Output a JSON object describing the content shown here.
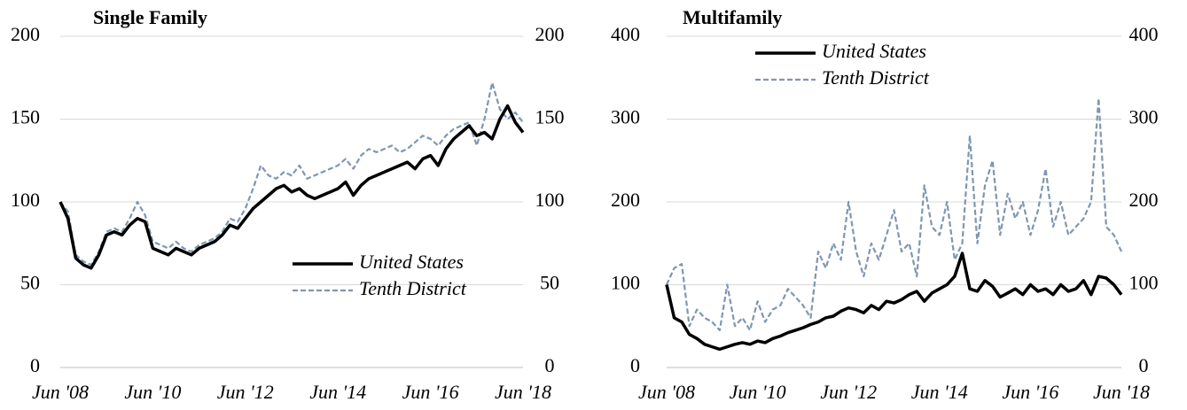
{
  "chart_data": [
    {
      "type": "line",
      "title": "Single Family",
      "categories": [
        "Jun '08",
        null,
        null,
        null,
        null,
        null,
        null,
        null,
        null,
        null,
        null,
        null,
        "Jun '10",
        null,
        null,
        null,
        null,
        null,
        null,
        null,
        null,
        null,
        null,
        null,
        "Jun '12",
        null,
        null,
        null,
        null,
        null,
        null,
        null,
        null,
        null,
        null,
        null,
        "Jun '14",
        null,
        null,
        null,
        null,
        null,
        null,
        null,
        null,
        null,
        null,
        null,
        "Jun '16",
        null,
        null,
        null,
        null,
        null,
        null,
        null,
        null,
        null,
        null,
        null,
        "Jun '18"
      ],
      "series": [
        {
          "name": "United States",
          "color": "#000000",
          "style": "solid",
          "values": [
            100,
            90,
            66,
            62,
            60,
            68,
            80,
            82,
            80,
            86,
            90,
            88,
            72,
            70,
            68,
            72,
            70,
            68,
            72,
            74,
            76,
            80,
            86,
            84,
            90,
            96,
            100,
            104,
            108,
            110,
            106,
            108,
            104,
            102,
            104,
            106,
            108,
            112,
            104,
            110,
            114,
            116,
            118,
            120,
            122,
            124,
            120,
            126,
            128,
            122,
            132,
            138,
            142,
            146,
            140,
            142,
            138,
            150,
            158,
            148,
            142
          ]
        },
        {
          "name": "Tenth District",
          "color": "#7f96b2",
          "style": "dashed",
          "values": [
            100,
            94,
            68,
            64,
            62,
            70,
            82,
            84,
            82,
            90,
            100,
            92,
            76,
            74,
            72,
            76,
            72,
            70,
            74,
            76,
            78,
            82,
            90,
            88,
            96,
            108,
            122,
            116,
            114,
            118,
            116,
            122,
            114,
            116,
            118,
            120,
            122,
            126,
            120,
            128,
            132,
            130,
            132,
            134,
            130,
            132,
            136,
            140,
            138,
            134,
            140,
            144,
            146,
            148,
            134,
            150,
            172,
            156,
            150,
            154,
            148
          ]
        }
      ],
      "ylim": [
        0,
        200
      ],
      "yticks": [
        0,
        50,
        100,
        150,
        200
      ],
      "y2lim": [
        0,
        200
      ],
      "y2ticks": [
        0,
        50,
        100,
        150,
        200
      ],
      "grid": true,
      "legend": "lower right"
    },
    {
      "type": "line",
      "title": "Multifamily",
      "categories": [
        "Jun '08",
        null,
        null,
        null,
        null,
        null,
        null,
        null,
        null,
        null,
        null,
        null,
        "Jun '10",
        null,
        null,
        null,
        null,
        null,
        null,
        null,
        null,
        null,
        null,
        null,
        "Jun '12",
        null,
        null,
        null,
        null,
        null,
        null,
        null,
        null,
        null,
        null,
        null,
        "Jun '14",
        null,
        null,
        null,
        null,
        null,
        null,
        null,
        null,
        null,
        null,
        null,
        "Jun '16",
        null,
        null,
        null,
        null,
        null,
        null,
        null,
        null,
        null,
        null,
        null,
        "Jun '18"
      ],
      "series": [
        {
          "name": "United States",
          "color": "#000000",
          "style": "solid",
          "values": [
            100,
            60,
            55,
            40,
            35,
            28,
            25,
            22,
            25,
            28,
            30,
            28,
            32,
            30,
            35,
            38,
            42,
            45,
            48,
            52,
            55,
            60,
            62,
            68,
            72,
            70,
            66,
            75,
            70,
            80,
            78,
            82,
            88,
            92,
            80,
            90,
            95,
            100,
            110,
            138,
            95,
            92,
            105,
            98,
            85,
            90,
            95,
            88,
            100,
            92,
            95,
            88,
            100,
            92,
            95,
            105,
            88,
            110,
            108,
            100,
            88
          ]
        },
        {
          "name": "Tenth District",
          "color": "#7f96b2",
          "style": "dashed",
          "values": [
            100,
            120,
            125,
            50,
            70,
            60,
            55,
            45,
            100,
            50,
            60,
            45,
            80,
            55,
            70,
            75,
            95,
            85,
            75,
            60,
            140,
            120,
            150,
            130,
            200,
            140,
            110,
            150,
            130,
            160,
            190,
            140,
            150,
            110,
            220,
            170,
            160,
            200,
            130,
            150,
            280,
            150,
            220,
            250,
            160,
            210,
            180,
            200,
            160,
            190,
            240,
            170,
            200,
            160,
            170,
            180,
            200,
            325,
            170,
            160,
            140
          ]
        }
      ],
      "ylim": [
        0,
        400
      ],
      "yticks": [
        0,
        100,
        200,
        300,
        400
      ],
      "y2lim": [
        0,
        400
      ],
      "y2ticks": [
        0,
        100,
        200,
        300,
        400
      ],
      "grid": true,
      "legend": "upper left"
    }
  ]
}
